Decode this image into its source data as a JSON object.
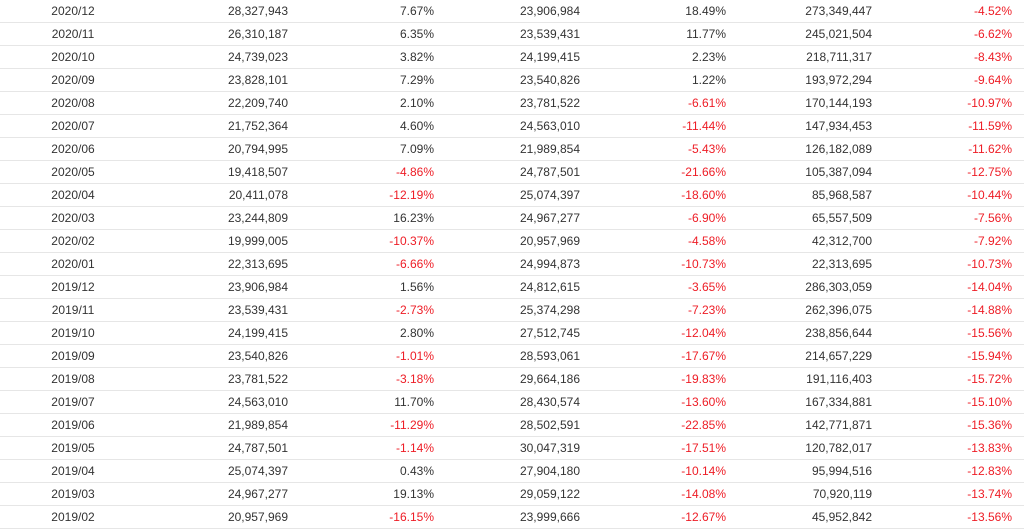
{
  "table": {
    "rows": [
      [
        "2020/12",
        "28,327,943",
        "7.67%",
        "23,906,984",
        "18.49%",
        "273,349,447",
        "-4.52%"
      ],
      [
        "2020/11",
        "26,310,187",
        "6.35%",
        "23,539,431",
        "11.77%",
        "245,021,504",
        "-6.62%"
      ],
      [
        "2020/10",
        "24,739,023",
        "3.82%",
        "24,199,415",
        "2.23%",
        "218,711,317",
        "-8.43%"
      ],
      [
        "2020/09",
        "23,828,101",
        "7.29%",
        "23,540,826",
        "1.22%",
        "193,972,294",
        "-9.64%"
      ],
      [
        "2020/08",
        "22,209,740",
        "2.10%",
        "23,781,522",
        "-6.61%",
        "170,144,193",
        "-10.97%"
      ],
      [
        "2020/07",
        "21,752,364",
        "4.60%",
        "24,563,010",
        "-11.44%",
        "147,934,453",
        "-11.59%"
      ],
      [
        "2020/06",
        "20,794,995",
        "7.09%",
        "21,989,854",
        "-5.43%",
        "126,182,089",
        "-11.62%"
      ],
      [
        "2020/05",
        "19,418,507",
        "-4.86%",
        "24,787,501",
        "-21.66%",
        "105,387,094",
        "-12.75%"
      ],
      [
        "2020/04",
        "20,411,078",
        "-12.19%",
        "25,074,397",
        "-18.60%",
        "85,968,587",
        "-10.44%"
      ],
      [
        "2020/03",
        "23,244,809",
        "16.23%",
        "24,967,277",
        "-6.90%",
        "65,557,509",
        "-7.56%"
      ],
      [
        "2020/02",
        "19,999,005",
        "-10.37%",
        "20,957,969",
        "-4.58%",
        "42,312,700",
        "-7.92%"
      ],
      [
        "2020/01",
        "22,313,695",
        "-6.66%",
        "24,994,873",
        "-10.73%",
        "22,313,695",
        "-10.73%"
      ],
      [
        "2019/12",
        "23,906,984",
        "1.56%",
        "24,812,615",
        "-3.65%",
        "286,303,059",
        "-14.04%"
      ],
      [
        "2019/11",
        "23,539,431",
        "-2.73%",
        "25,374,298",
        "-7.23%",
        "262,396,075",
        "-14.88%"
      ],
      [
        "2019/10",
        "24,199,415",
        "2.80%",
        "27,512,745",
        "-12.04%",
        "238,856,644",
        "-15.56%"
      ],
      [
        "2019/09",
        "23,540,826",
        "-1.01%",
        "28,593,061",
        "-17.67%",
        "214,657,229",
        "-15.94%"
      ],
      [
        "2019/08",
        "23,781,522",
        "-3.18%",
        "29,664,186",
        "-19.83%",
        "191,116,403",
        "-15.72%"
      ],
      [
        "2019/07",
        "24,563,010",
        "11.70%",
        "28,430,574",
        "-13.60%",
        "167,334,881",
        "-15.10%"
      ],
      [
        "2019/06",
        "21,989,854",
        "-11.29%",
        "28,502,591",
        "-22.85%",
        "142,771,871",
        "-15.36%"
      ],
      [
        "2019/05",
        "24,787,501",
        "-1.14%",
        "30,047,319",
        "-17.51%",
        "120,782,017",
        "-13.83%"
      ],
      [
        "2019/04",
        "25,074,397",
        "0.43%",
        "27,904,180",
        "-10.14%",
        "95,994,516",
        "-12.83%"
      ],
      [
        "2019/03",
        "24,967,277",
        "19.13%",
        "29,059,122",
        "-14.08%",
        "70,920,119",
        "-13.74%"
      ],
      [
        "2019/02",
        "20,957,969",
        "-16.15%",
        "23,999,666",
        "-12.67%",
        "45,952,842",
        "-13.56%"
      ]
    ]
  },
  "colors": {
    "negative": "#ee1c25",
    "text": "#333333",
    "divider": "#e6e6e6"
  }
}
